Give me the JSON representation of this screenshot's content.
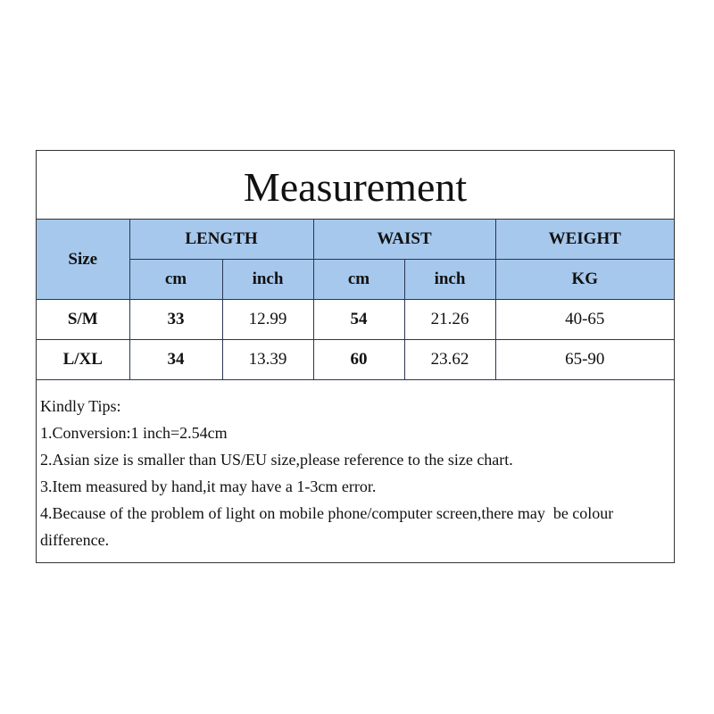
{
  "title": "Measurement",
  "header": {
    "size": "Size",
    "length": "LENGTH",
    "waist": "WAIST",
    "weight": "WEIGHT",
    "cm": "cm",
    "inch": "inch",
    "kg": "KG"
  },
  "rows": [
    {
      "size": "S/M",
      "length_cm": "33",
      "length_inch": "12.99",
      "waist_cm": "54",
      "waist_inch": "21.26",
      "weight": "40-65"
    },
    {
      "size": "L/XL",
      "length_cm": "34",
      "length_inch": "13.39",
      "waist_cm": "60",
      "waist_inch": "23.62",
      "weight": "65-90"
    }
  ],
  "tips": [
    "Kindly Tips:",
    "1.Conversion:1 inch=2.54cm",
    "2.Asian size is smaller than US/EU size,please reference to the size chart.",
    "3.Item measured by hand,it may have a 1-3cm error.",
    "4.Because of the problem of light on mobile phone/computer screen,there may  be colour difference."
  ]
}
